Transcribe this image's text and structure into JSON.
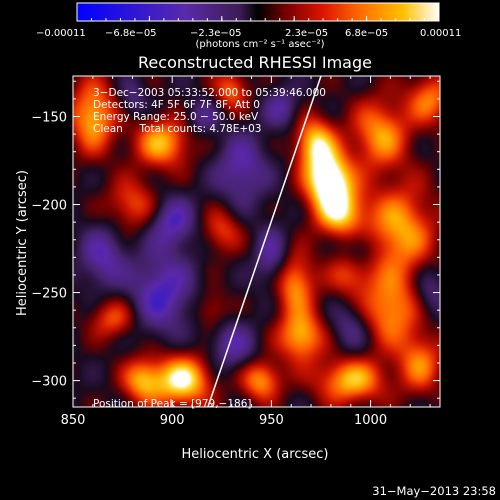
{
  "chart_data": {
    "type": "heatmap",
    "title": "Reconstructed RHESSI Image",
    "xlabel": "Heliocentric X (arcsec)",
    "ylabel": "Heliocentric Y (arcsec)",
    "xlim": [
      850,
      1035
    ],
    "ylim": [
      -315,
      -127
    ],
    "xticks": [
      850,
      900,
      950,
      1000
    ],
    "yticks": [
      -150,
      -200,
      -250,
      -300
    ],
    "xtick_labels": [
      "850",
      "900",
      "950",
      "1000"
    ],
    "ytick_labels": [
      "−150",
      "−200",
      "−250",
      "−300"
    ],
    "colorbar": {
      "range": [
        -0.00011,
        0.00011
      ],
      "tick_labels": [
        "−0.00011",
        "−6.8e−05",
        "−2.3e−05",
        "2.3e−05",
        "6.8e−05",
        "0.00011"
      ],
      "unit_label": "(photons cm⁻² s⁻¹ asec⁻²)"
    },
    "annotations": {
      "time_range": "3−Dec−2003 05:33:52.000 to 05:39:46.000",
      "detectors": "Detectors: 4F 5F 6F 7F 8F, Att 0",
      "energy": "Energy Range: 25.0 − 50.0 keV",
      "clean": "Clean     Total counts: 4.78E+03",
      "peak": "Position of Peak = [979,−186]"
    },
    "limb_line": {
      "x": [
        918,
        975
      ],
      "y": [
        -315,
        -127
      ]
    },
    "blobs": [
      {
        "x": 979,
        "y": -186,
        "sx": 8,
        "sy": 11,
        "a": 1.25
      },
      {
        "x": 972,
        "y": -165,
        "sx": 7,
        "sy": 10,
        "a": 0.85
      },
      {
        "x": 985,
        "y": -205,
        "sx": 9,
        "sy": 10,
        "a": 0.8
      },
      {
        "x": 1005,
        "y": -160,
        "sx": 10,
        "sy": 14,
        "a": 0.7
      },
      {
        "x": 1015,
        "y": -215,
        "sx": 12,
        "sy": 18,
        "a": 0.75
      },
      {
        "x": 1010,
        "y": -260,
        "sx": 10,
        "sy": 14,
        "a": 0.7
      },
      {
        "x": 1025,
        "y": -290,
        "sx": 8,
        "sy": 12,
        "a": 0.6
      },
      {
        "x": 962,
        "y": -245,
        "sx": 7,
        "sy": 12,
        "a": 0.7
      },
      {
        "x": 965,
        "y": -275,
        "sx": 8,
        "sy": 10,
        "a": 0.8
      },
      {
        "x": 990,
        "y": -300,
        "sx": 12,
        "sy": 9,
        "a": 0.8
      },
      {
        "x": 945,
        "y": -300,
        "sx": 7,
        "sy": 8,
        "a": 0.7
      },
      {
        "x": 1030,
        "y": -140,
        "sx": 8,
        "sy": 10,
        "a": 0.6
      },
      {
        "x": 990,
        "y": -240,
        "sx": 8,
        "sy": 9,
        "a": 0.45
      },
      {
        "x": 905,
        "y": -300,
        "sx": 10,
        "sy": 10,
        "a": 1.0
      },
      {
        "x": 885,
        "y": -300,
        "sx": 7,
        "sy": 9,
        "a": 0.7
      },
      {
        "x": 860,
        "y": -150,
        "sx": 8,
        "sy": 14,
        "a": 0.8
      },
      {
        "x": 895,
        "y": -165,
        "sx": 10,
        "sy": 10,
        "a": 0.75
      },
      {
        "x": 880,
        "y": -200,
        "sx": 9,
        "sy": 10,
        "a": 0.5
      },
      {
        "x": 925,
        "y": -215,
        "sx": 7,
        "sy": 9,
        "a": 0.45
      },
      {
        "x": 870,
        "y": -265,
        "sx": 8,
        "sy": 8,
        "a": 0.5
      },
      {
        "x": 930,
        "y": -135,
        "sx": 6,
        "sy": 8,
        "a": 0.55
      },
      {
        "x": 920,
        "y": -260,
        "sx": 6,
        "sy": 8,
        "a": 0.35
      },
      {
        "x": 895,
        "y": -250,
        "sx": 11,
        "sy": 16,
        "a": -0.6
      },
      {
        "x": 900,
        "y": -210,
        "sx": 8,
        "sy": 10,
        "a": -0.55
      },
      {
        "x": 935,
        "y": -180,
        "sx": 9,
        "sy": 14,
        "a": -0.5
      },
      {
        "x": 865,
        "y": -230,
        "sx": 8,
        "sy": 12,
        "a": -0.5
      },
      {
        "x": 930,
        "y": -280,
        "sx": 8,
        "sy": 10,
        "a": -0.45
      },
      {
        "x": 950,
        "y": -230,
        "sx": 6,
        "sy": 12,
        "a": -0.45
      },
      {
        "x": 990,
        "y": -270,
        "sx": 7,
        "sy": 10,
        "a": -0.35
      },
      {
        "x": 995,
        "y": -225,
        "sx": 6,
        "sy": 8,
        "a": -0.35
      },
      {
        "x": 1030,
        "y": -250,
        "sx": 6,
        "sy": 10,
        "a": -0.35
      },
      {
        "x": 880,
        "y": -140,
        "sx": 5,
        "sy": 8,
        "a": -0.3
      },
      {
        "x": 915,
        "y": -150,
        "sx": 6,
        "sy": 7,
        "a": -0.35
      },
      {
        "x": 955,
        "y": -145,
        "sx": 6,
        "sy": 8,
        "a": -0.4
      }
    ]
  },
  "footer": {
    "timestamp": "31−May−2013 23:58"
  }
}
